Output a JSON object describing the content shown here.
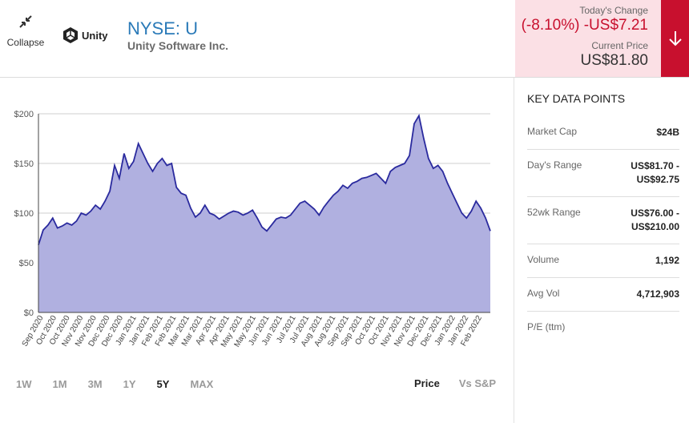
{
  "header": {
    "collapse_label": "Collapse",
    "logo_text": "Unity",
    "ticker": "NYSE: U",
    "company": "Unity Software Inc.",
    "todays_change_label": "Today's Change",
    "todays_change_value": "(-8.10%) -US$7.21",
    "current_price_label": "Current Price",
    "current_price_value": "US$81.80",
    "accent_color": "#c8102e",
    "change_bg_color": "#fbe0e5",
    "ticker_color": "#2a7ab8"
  },
  "key_data": {
    "title": "KEY DATA POINTS",
    "rows": [
      {
        "label": "Market Cap",
        "value": "$24B"
      },
      {
        "label": "Day's Range",
        "value_line1": "US$81.70 -",
        "value_line2": "US$92.75"
      },
      {
        "label": "52wk Range",
        "value_line1": "US$76.00 -",
        "value_line2": "US$210.00"
      },
      {
        "label": "Volume",
        "value": "1,192"
      },
      {
        "label": "Avg Vol",
        "value": "4,712,903"
      },
      {
        "label": "P/E (ttm)",
        "value": ""
      }
    ]
  },
  "range_tabs": {
    "items": [
      "1W",
      "1M",
      "3M",
      "1Y",
      "5Y",
      "MAX"
    ],
    "active": "5Y"
  },
  "mode_tabs": {
    "items": [
      "Price",
      "Vs S&P"
    ],
    "active": "Price"
  },
  "chart_data": {
    "type": "area",
    "ylim": [
      0,
      200
    ],
    "y_ticks": [
      "$0",
      "$50",
      "$100",
      "$150",
      "$200"
    ],
    "y_tick_values": [
      0,
      50,
      100,
      150,
      200
    ],
    "x_labels": [
      "Sep 2020",
      "Oct 2020",
      "Oct 2020",
      "Nov 2020",
      "Nov 2020",
      "Dec 2020",
      "Dec 2020",
      "Jan 2021",
      "Jan 2021",
      "Feb 2021",
      "Feb 2021",
      "Mar 2021",
      "Mar 2021",
      "Apr 2021",
      "Apr 2021",
      "May 2021",
      "May 2021",
      "Jun 2021",
      "Jun 2021",
      "Jul 2021",
      "Jul 2021",
      "Aug 2021",
      "Aug 2021",
      "Sep 2021",
      "Sep 2021",
      "Oct 2021",
      "Oct 2021",
      "Nov 2021",
      "Nov 2021",
      "Dec 2021",
      "Dec 2021",
      "Jan 2022",
      "Jan 2022",
      "Feb 2022"
    ],
    "series": [
      {
        "fill_color": "#b0b0e0",
        "line_color": "#2a2a9e",
        "values": [
          68,
          83,
          88,
          95,
          85,
          87,
          90,
          88,
          92,
          100,
          98,
          102,
          108,
          104,
          112,
          122,
          148,
          135,
          160,
          145,
          152,
          170,
          160,
          150,
          142,
          150,
          155,
          148,
          150,
          126,
          120,
          118,
          105,
          96,
          100,
          108,
          100,
          98,
          94,
          97,
          100,
          102,
          101,
          98,
          100,
          103,
          95,
          86,
          82,
          88,
          94,
          96,
          95,
          98,
          104,
          110,
          112,
          108,
          104,
          98,
          106,
          112,
          118,
          122,
          128,
          125,
          130,
          132,
          135,
          136,
          138,
          140,
          135,
          130,
          142,
          146,
          148,
          150,
          158,
          190,
          198,
          175,
          155,
          145,
          148,
          142,
          130,
          120,
          110,
          100,
          95,
          102,
          112,
          105,
          95,
          82
        ]
      }
    ]
  }
}
